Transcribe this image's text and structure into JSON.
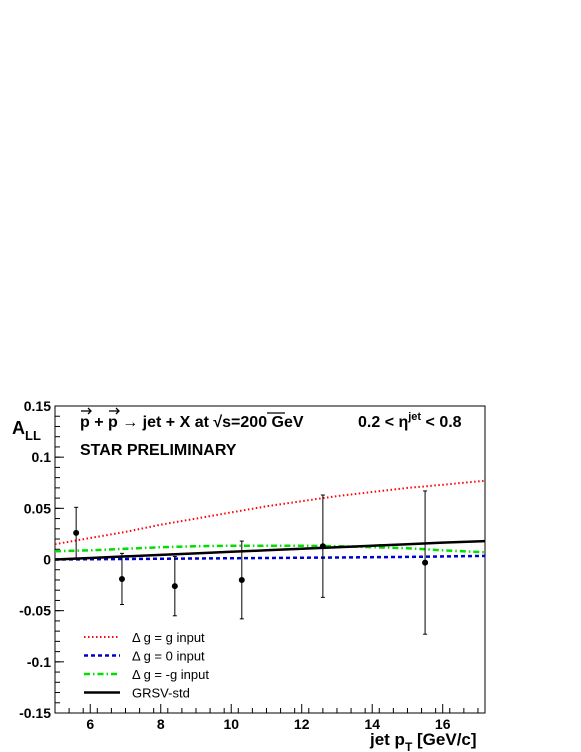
{
  "chart_data": {
    "type": "line",
    "title": "",
    "annotations": {
      "process": "p + p → jet + X at √s=200 GeV",
      "eta_range": "0.2 < η^jet < 0.8",
      "preliminary": "STAR PRELIMINARY"
    },
    "xlabel": "jet p_T [GeV/c]",
    "ylabel": "A_LL",
    "xlim": [
      5,
      17.2
    ],
    "ylim": [
      -0.15,
      0.15
    ],
    "x_ticks": [
      6,
      8,
      10,
      12,
      14,
      16
    ],
    "x_tick_labels": [
      "6",
      "8",
      "10",
      "12",
      "14",
      "16"
    ],
    "y_ticks": [
      -0.15,
      -0.1,
      -0.05,
      0,
      0.05,
      0.1,
      0.15
    ],
    "y_tick_labels": [
      "-0.15",
      "-0.1",
      "-0.05",
      "0",
      "0.05",
      "0.1",
      "0.15"
    ],
    "grid": false,
    "legend_position": "bottom-left",
    "series": [
      {
        "name": "Δ g = g input",
        "color": "#ff0000",
        "style": "dotted",
        "x": [
          5,
          6,
          7,
          8,
          9,
          10,
          11,
          12,
          13,
          14,
          15,
          16,
          17.2
        ],
        "y": [
          0.015,
          0.021,
          0.027,
          0.034,
          0.04,
          0.046,
          0.052,
          0.057,
          0.062,
          0.066,
          0.07,
          0.073,
          0.077
        ]
      },
      {
        "name": "Δ g = 0 input",
        "color": "#0000cc",
        "style": "dashed",
        "x": [
          5,
          7,
          9,
          11,
          13,
          15,
          17.2
        ],
        "y": [
          0.0,
          0.0005,
          0.001,
          0.0015,
          0.002,
          0.0025,
          0.0035
        ]
      },
      {
        "name": "Δ g = -g input",
        "color": "#00dd00",
        "style": "dashdot",
        "x": [
          5,
          6,
          7,
          8,
          9,
          10,
          11,
          12,
          13,
          14,
          15,
          16,
          17.2
        ],
        "y": [
          0.008,
          0.009,
          0.0105,
          0.012,
          0.013,
          0.0135,
          0.0135,
          0.0135,
          0.013,
          0.012,
          0.011,
          0.009,
          0.007
        ]
      },
      {
        "name": "GRSV-std",
        "color": "#000000",
        "style": "solid",
        "x": [
          5,
          6,
          7,
          8,
          9,
          10,
          11,
          12,
          13,
          14,
          15,
          16,
          17.2
        ],
        "y": [
          0.0,
          0.0015,
          0.003,
          0.0045,
          0.006,
          0.0075,
          0.009,
          0.0105,
          0.012,
          0.0135,
          0.015,
          0.0165,
          0.018
        ]
      }
    ],
    "data_points": [
      {
        "x": 5.6,
        "y": 0.026,
        "err": 0.025
      },
      {
        "x": 6.9,
        "y": -0.019,
        "err": 0.025
      },
      {
        "x": 8.4,
        "y": -0.026,
        "err": 0.029
      },
      {
        "x": 10.3,
        "y": -0.02,
        "err": 0.038
      },
      {
        "x": 12.6,
        "y": 0.013,
        "err": 0.05
      },
      {
        "x": 15.5,
        "y": -0.003,
        "err": 0.07
      }
    ]
  }
}
